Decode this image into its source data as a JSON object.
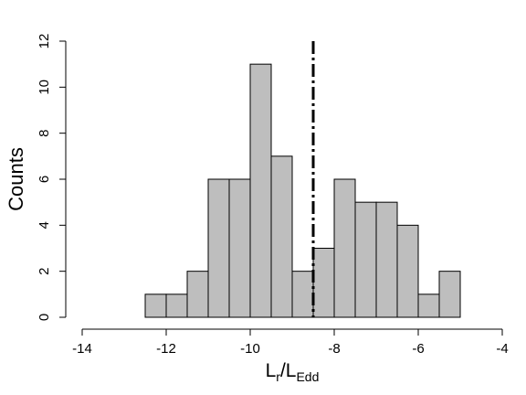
{
  "chart_data": {
    "type": "bar",
    "subtype": "histogram",
    "bin_edges": [
      -12.5,
      -12,
      -11.5,
      -11,
      -10.5,
      -10,
      -9.5,
      -9,
      -8.5,
      -8,
      -7.5,
      -7,
      -6.5,
      -6,
      -5.5,
      -5
    ],
    "values": [
      1,
      1,
      2,
      6,
      6,
      11,
      7,
      2,
      3,
      6,
      5,
      5,
      4,
      1,
      2
    ],
    "xlim": [
      -14,
      -4
    ],
    "ylim": [
      0,
      12
    ],
    "xticks": [
      -14,
      -12,
      -10,
      -8,
      -6,
      -4
    ],
    "yticks": [
      0,
      2,
      4,
      6,
      8,
      10,
      12
    ],
    "ylabel": "Counts",
    "xlabel": {
      "main": "L",
      "sub1": "r",
      "sep": "/L",
      "sub2": "Edd"
    },
    "reference_line": {
      "x": -8.5,
      "style": "dash-dot",
      "color": "#000000"
    },
    "bar_color": "#bebebe",
    "grid": false,
    "legend": "none"
  }
}
